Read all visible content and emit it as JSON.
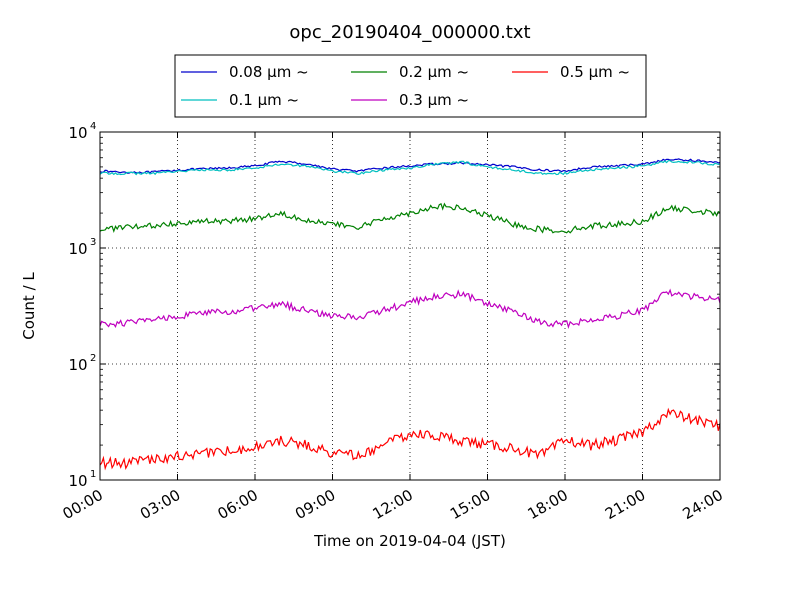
{
  "chart_data": {
    "type": "line",
    "title": "opc_20190404_000000.txt",
    "xlabel": "Time on 2019-04-04 (JST)",
    "ylabel": "Count / L",
    "y_scale": "log",
    "ylim": [
      10,
      10000
    ],
    "xlim": [
      "00:00",
      "24:00"
    ],
    "x_ticks": [
      "00:00",
      "03:00",
      "06:00",
      "09:00",
      "12:00",
      "15:00",
      "18:00",
      "21:00",
      "24:00"
    ],
    "y_ticks": [
      {
        "base": "10",
        "exp": "1"
      },
      {
        "base": "10",
        "exp": "2"
      },
      {
        "base": "10",
        "exp": "3"
      },
      {
        "base": "10",
        "exp": "4"
      }
    ],
    "grid": true,
    "legend_position": "top-center",
    "x": [
      "00:00",
      "01:00",
      "02:00",
      "03:00",
      "04:00",
      "05:00",
      "06:00",
      "07:00",
      "08:00",
      "09:00",
      "10:00",
      "11:00",
      "12:00",
      "13:00",
      "14:00",
      "15:00",
      "16:00",
      "17:00",
      "18:00",
      "19:00",
      "20:00",
      "21:00",
      "22:00",
      "23:00",
      "24:00"
    ],
    "series": [
      {
        "name": "0.08 μm ~",
        "color": "#0000cc",
        "values": [
          4600,
          4500,
          4500,
          4700,
          4800,
          4900,
          5100,
          5600,
          5300,
          4800,
          4600,
          4900,
          5100,
          5300,
          5400,
          5200,
          5000,
          4700,
          4600,
          5000,
          5100,
          5300,
          5800,
          5700,
          5400
        ]
      },
      {
        "name": "0.1 μm ~",
        "color": "#00bfbf",
        "values": [
          4400,
          4400,
          4400,
          4600,
          4700,
          4700,
          4900,
          5300,
          5100,
          4600,
          4400,
          4700,
          4900,
          5300,
          5500,
          5000,
          4700,
          4400,
          4400,
          4700,
          4900,
          5100,
          5600,
          5500,
          5200
        ]
      },
      {
        "name": "0.2 μm ~",
        "color": "#008000",
        "values": [
          1450,
          1500,
          1550,
          1650,
          1700,
          1700,
          1800,
          2000,
          1750,
          1600,
          1500,
          1800,
          2000,
          2300,
          2200,
          1900,
          1600,
          1450,
          1400,
          1550,
          1600,
          1700,
          2200,
          2100,
          1950
        ]
      },
      {
        "name": "0.3 μm ~",
        "color": "#bf00bf",
        "values": [
          220,
          225,
          240,
          260,
          275,
          280,
          300,
          330,
          290,
          260,
          255,
          290,
          340,
          380,
          400,
          330,
          280,
          230,
          220,
          240,
          260,
          290,
          420,
          380,
          350
        ]
      },
      {
        "name": "0.5 μm ~",
        "color": "#ff0000",
        "values": [
          14,
          14,
          15,
          16,
          17,
          18,
          19,
          22,
          20,
          17,
          16,
          20,
          25,
          24,
          22,
          20,
          19,
          16,
          22,
          20,
          22,
          26,
          38,
          33,
          29
        ]
      }
    ]
  }
}
